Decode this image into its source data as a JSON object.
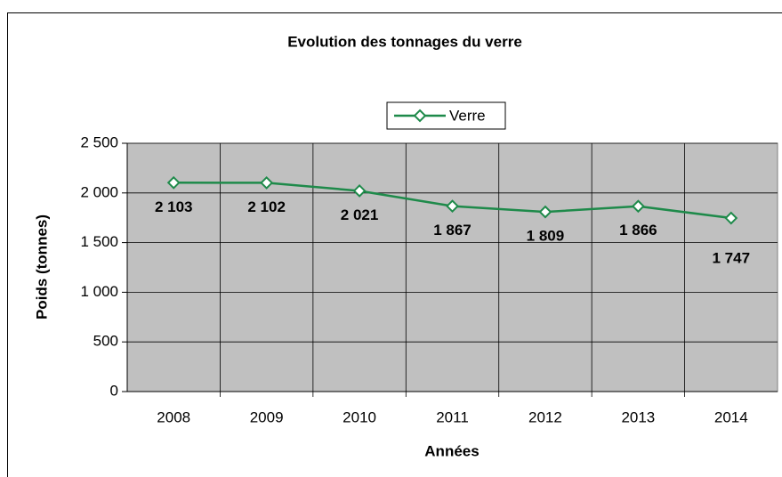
{
  "chart_data": {
    "type": "line",
    "title": "Evolution des tonnages du verre",
    "x_label": "Années",
    "y_label": "Poids (tonnes)",
    "categories": [
      "2008",
      "2009",
      "2010",
      "2011",
      "2012",
      "2013",
      "2014"
    ],
    "series": [
      {
        "name": "Verre",
        "color": "#1e8a4a",
        "values": [
          2103,
          2102,
          2021,
          1867,
          1809,
          1866,
          1747
        ],
        "value_labels": [
          "2 103",
          "2 102",
          "2 021",
          "1 867",
          "1 809",
          "1 866",
          "1 747"
        ]
      }
    ],
    "ylim": [
      0,
      2500
    ],
    "yticks": [
      {
        "value": 0,
        "label": "0"
      },
      {
        "value": 500,
        "label": "500"
      },
      {
        "value": 1000,
        "label": "1 000"
      },
      {
        "value": 1500,
        "label": "1 500"
      },
      {
        "value": 2000,
        "label": "2 000"
      },
      {
        "value": 2500,
        "label": "2 500"
      }
    ],
    "grid": true,
    "legend": "top"
  }
}
